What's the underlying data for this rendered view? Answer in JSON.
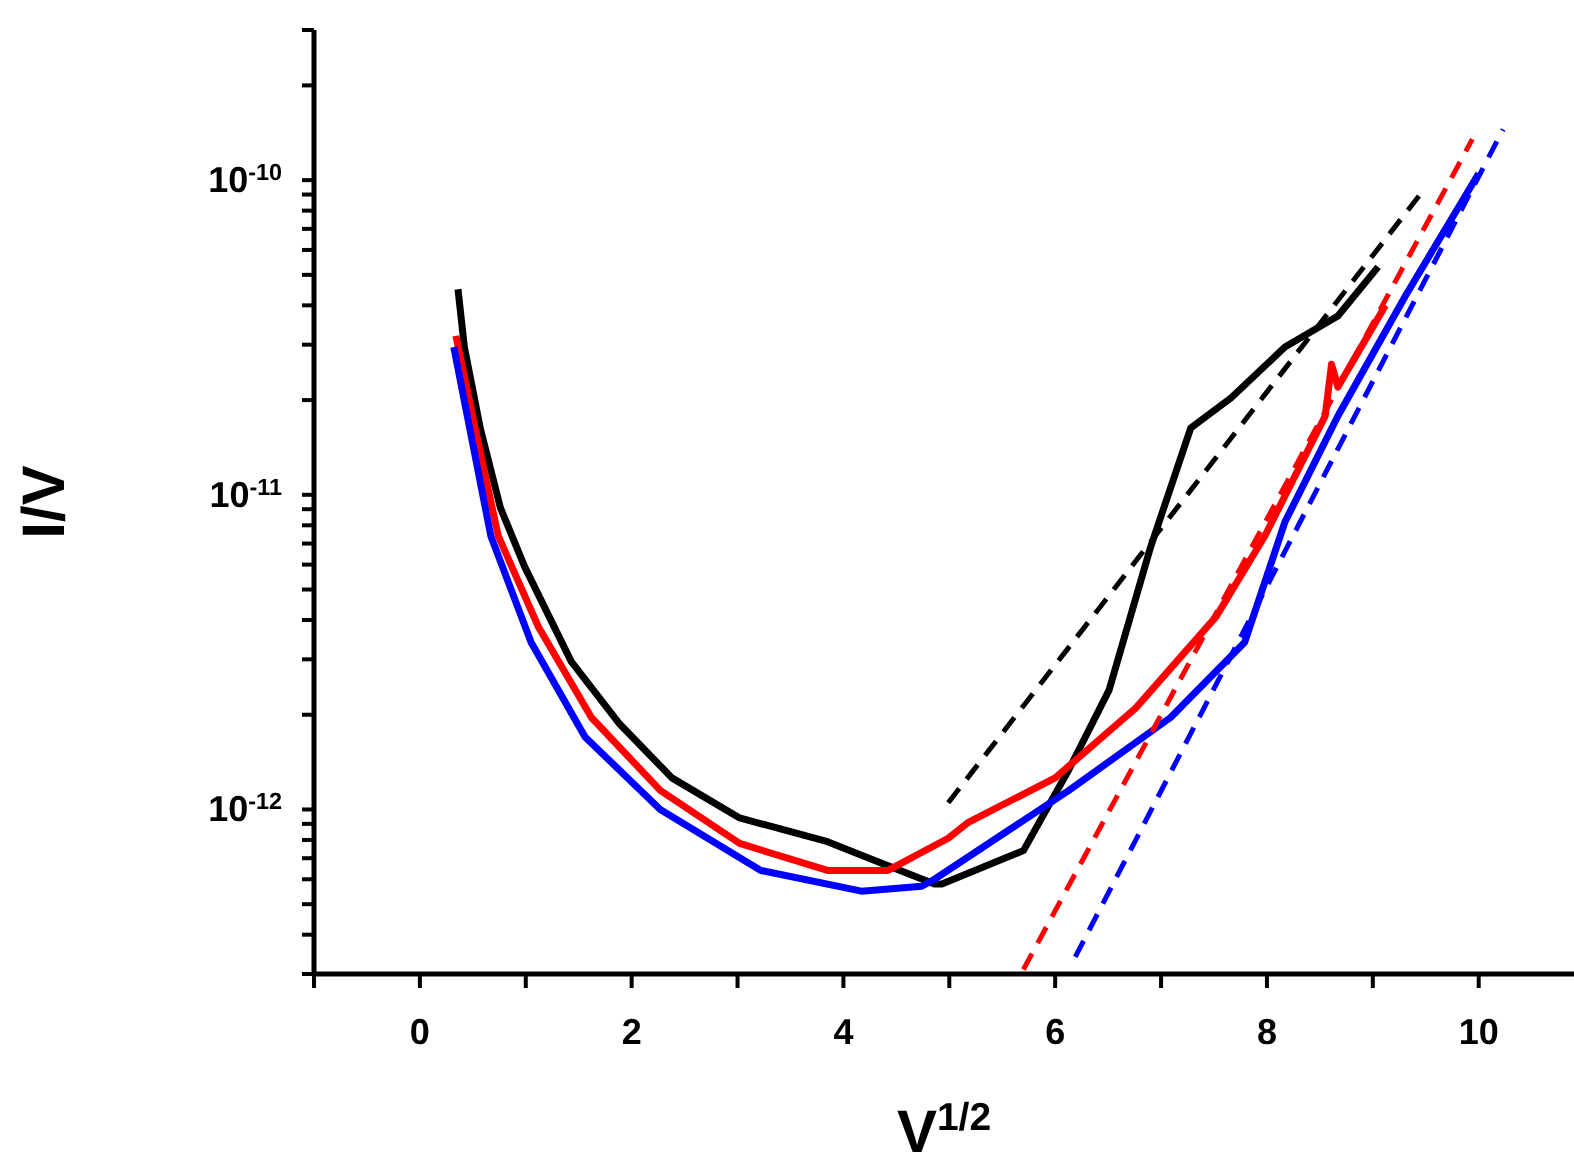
{
  "chart_data": {
    "type": "line",
    "xlabel": "V$^{1/2}$",
    "ylabel": "I/V",
    "log": "y",
    "xlim": [
      -1,
      10.9
    ],
    "xticks": [
      {
        "value": -1,
        "label": null
      },
      0,
      {
        "value": 1,
        "label": null
      },
      2,
      {
        "value": 3,
        "label": null
      },
      4,
      {
        "value": 5,
        "label": null
      },
      6,
      {
        "value": 7,
        "label": null
      },
      8,
      {
        "value": 9,
        "label": null
      },
      10
    ],
    "ylim": [
      3e-13,
      3e-10
    ],
    "yticks": [
      {
        "value": 3e-13,
        "label": null
      },
      {
        "value": 4e-13,
        "label": null
      },
      {
        "value": 5e-13,
        "label": null
      },
      {
        "value": 6e-13,
        "label": null
      },
      {
        "value": 7e-13,
        "label": null
      },
      {
        "value": 8e-13,
        "label": null
      },
      {
        "value": 9e-13,
        "label": null
      },
      {
        "value": 1e-12,
        "label": "10$^{-12}$"
      },
      {
        "value": 2e-12,
        "label": null
      },
      {
        "value": 3e-12,
        "label": null
      },
      {
        "value": 4e-12,
        "label": null
      },
      {
        "value": 5e-12,
        "label": null
      },
      {
        "value": 6e-12,
        "label": null
      },
      {
        "value": 7e-12,
        "label": null
      },
      {
        "value": 8e-12,
        "label": null
      },
      {
        "value": 9e-12,
        "label": null
      },
      {
        "value": 1e-11,
        "label": "10$^{-11}$"
      },
      {
        "value": 2e-11,
        "label": null
      },
      {
        "value": 3e-11,
        "label": null
      },
      {
        "value": 4e-11,
        "label": null
      },
      {
        "value": 5e-11,
        "label": null
      },
      {
        "value": 6e-11,
        "label": null
      },
      {
        "value": 7e-11,
        "label": null
      },
      {
        "value": 8e-11,
        "label": null
      },
      {
        "value": 9e-11,
        "label": null
      },
      {
        "value": 1e-10,
        "label": "10$^{-10}$"
      },
      {
        "value": 2e-10,
        "label": null
      },
      {
        "value": 3e-10,
        "label": null
      }
    ],
    "series": [
      {
        "color": "#000000",
        "line_style": "solid",
        "x": [
          0.36,
          0.42,
          0.57,
          0.76,
          0.99,
          1.43,
          1.88,
          2.38,
          3.02,
          3.85,
          4.29,
          4.86,
          4.93,
          5.7,
          6.13,
          6.51,
          6.9,
          7.28,
          7.66,
          8.17,
          8.67,
          9.05
        ],
        "values": [
          4.5e-11,
          2.95e-11,
          1.63e-11,
          9.1e-12,
          5.9e-12,
          2.95e-12,
          1.88e-12,
          1.26e-12,
          9.4e-13,
          7.9e-13,
          6.9e-13,
          5.8e-13,
          5.8e-13,
          7.4e-13,
          1.34e-12,
          2.4e-12,
          6.8e-12,
          1.63e-11,
          2.03e-11,
          2.95e-11,
          3.7e-11,
          5.3e-11
        ]
      },
      {
        "color": "#ff0000",
        "line_style": "solid",
        "x": [
          0.34,
          0.55,
          0.74,
          1.12,
          1.62,
          2.27,
          3.02,
          3.85,
          4.42,
          4.99,
          5.18,
          6.0,
          6.76,
          7.52,
          7.98,
          8.55,
          8.61,
          8.67,
          9.12
        ],
        "values": [
          3.2e-11,
          1.47e-11,
          7.4e-12,
          3.8e-12,
          1.96e-12,
          1.15e-12,
          7.8e-13,
          6.4e-13,
          6.4e-13,
          8.1e-13,
          9.1e-13,
          1.26e-12,
          2.1e-12,
          4.1e-12,
          7.4e-12,
          1.78e-11,
          2.6e-11,
          2.2e-11,
          4e-11
        ]
      },
      {
        "color": "#0000ff",
        "line_style": "solid",
        "x": [
          0.32,
          0.67,
          1.05,
          1.56,
          2.27,
          3.22,
          4.17,
          4.74,
          4.86,
          6.13,
          7.09,
          7.79,
          8.17,
          8.67,
          9.31,
          10.0
        ],
        "values": [
          2.95e-11,
          7.4e-12,
          3.4e-12,
          1.7e-12,
          1e-12,
          6.4e-13,
          5.5e-13,
          5.7e-13,
          6e-13,
          1.15e-12,
          1.96e-12,
          3.4e-12,
          8.2e-12,
          1.78e-11,
          4.3e-11,
          1.05e-10
        ]
      },
      {
        "color": "#000000",
        "line_style": "dashed",
        "x": [
          4.99,
          9.5
        ],
        "values": [
          1.05e-12,
          9.5e-11
        ]
      },
      {
        "color": "#ff0000",
        "line_style": "dashed",
        "x": [
          5.7,
          9.94
        ],
        "values": [
          3.1e-13,
          1.35e-10
        ]
      },
      {
        "color": "#0000ff",
        "line_style": "dashed",
        "x": [
          6.19,
          10.23
        ],
        "values": [
          3.4e-13,
          1.45e-10
        ]
      }
    ]
  }
}
